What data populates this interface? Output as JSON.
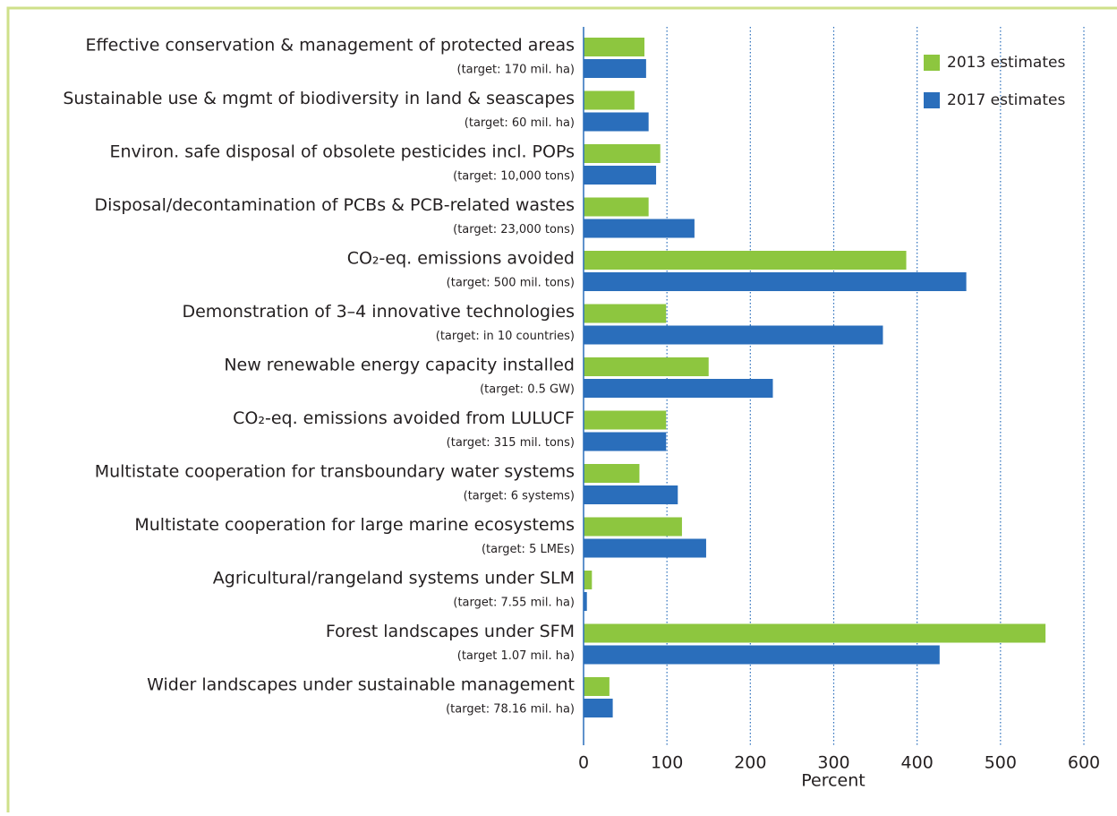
{
  "chart_data": {
    "type": "barh",
    "categories": [
      "Effective conservation & management of protected areas",
      "Sustainable use & mgmt of biodiversity in land & seascapes",
      "Environ. safe disposal of obsolete pesticides incl. POPs",
      "Disposal/decontamination of PCBs & PCB-related wastes",
      "CO₂-eq. emissions avoided",
      "Demonstration of 3–4 innovative technologies",
      "New renewable energy capacity installed",
      "CO₂-eq. emissions avoided from LULUCF",
      "Multistate cooperation for transboundary water systems",
      "Multistate cooperation for large marine ecosystems",
      "Agricultural/rangeland systems under SLM",
      "Forest landscapes under SFM",
      "Wider landscapes under sustainable management"
    ],
    "targets": [
      "(target: 170 mil. ha)",
      "(target: 60 mil. ha)",
      "(target: 10,000 tons)",
      "(target: 23,000 tons)",
      "(target: 500  mil. tons)",
      "(target: in 10 countries)",
      "(target: 0.5 GW)",
      "(target: 315 mil. tons)",
      "(target: 6 systems)",
      "(target: 5 LMEs)",
      "(target: 7.55 mil. ha)",
      "(target 1.07 mil. ha)",
      "(target: 78.16 mil. ha)"
    ],
    "series": [
      {
        "name": "2013 estimates",
        "color": "#8dc63f",
        "values": [
          73,
          61,
          92,
          78,
          387,
          99,
          150,
          99,
          67,
          118,
          10,
          554,
          31
        ]
      },
      {
        "name": "2017 estimates",
        "color": "#2a6ebb",
        "values": [
          75,
          78,
          87,
          133,
          459,
          359,
          227,
          99,
          113,
          147,
          4,
          427,
          35
        ]
      }
    ],
    "x_label": "Percent",
    "xlim": [
      0,
      600
    ],
    "xticks": [
      0,
      100,
      200,
      300,
      400,
      500,
      600
    ],
    "grid": true,
    "legend": "top-right"
  }
}
